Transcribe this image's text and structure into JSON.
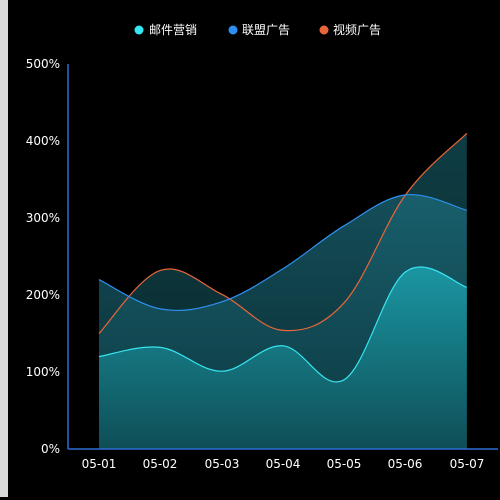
{
  "chart_data": {
    "type": "area",
    "categories": [
      "05-01",
      "05-02",
      "05-03",
      "05-04",
      "05-05",
      "05-06",
      "05-07"
    ],
    "series": [
      {
        "name": "邮件营销",
        "values": [
          120,
          132,
          101,
          134,
          90,
          230,
          210
        ],
        "color": "#36e6f0"
      },
      {
        "name": "联盟广告",
        "values": [
          220,
          182,
          191,
          234,
          290,
          330,
          310
        ],
        "color": "#2f8ff0"
      },
      {
        "name": "视频广告",
        "values": [
          150,
          232,
          201,
          154,
          190,
          330,
          410
        ],
        "color": "#e8663a"
      }
    ],
    "y_ticks": [
      "0%",
      "100%",
      "200%",
      "300%",
      "400%",
      "500%"
    ],
    "ylim": [
      0,
      500
    ],
    "legend_position": "top-center",
    "grid": false
  }
}
